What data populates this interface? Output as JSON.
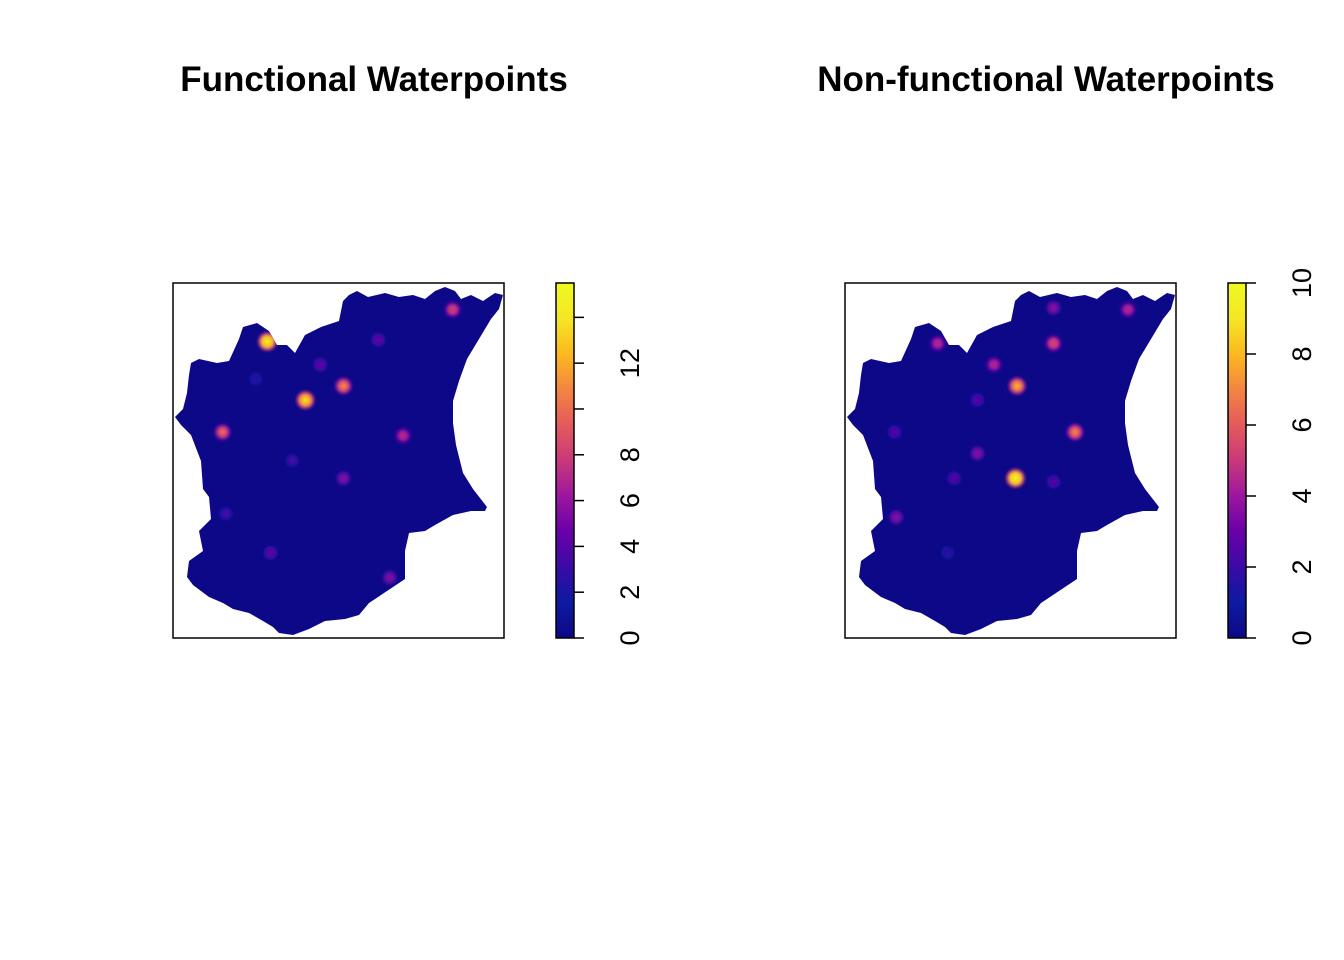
{
  "panels": [
    {
      "title": "Functional Waterpoints",
      "legend": {
        "min": 0,
        "max": 15.5,
        "ticks": [
          0,
          2,
          4,
          6,
          8,
          10,
          12,
          14
        ],
        "labels": [
          "0",
          "2",
          "4",
          "6",
          "8",
          "",
          "12",
          ""
        ]
      },
      "hotspots": [
        {
          "lon": 0.285,
          "lat": 0.835,
          "value": 15
        },
        {
          "lon": 0.4,
          "lat": 0.67,
          "value": 14
        },
        {
          "lon": 0.515,
          "lat": 0.71,
          "value": 11
        },
        {
          "lon": 0.845,
          "lat": 0.925,
          "value": 9
        },
        {
          "lon": 0.695,
          "lat": 0.57,
          "value": 8
        },
        {
          "lon": 0.15,
          "lat": 0.58,
          "value": 10
        },
        {
          "lon": 0.445,
          "lat": 0.77,
          "value": 5
        },
        {
          "lon": 0.62,
          "lat": 0.84,
          "value": 5
        },
        {
          "lon": 0.515,
          "lat": 0.45,
          "value": 6
        },
        {
          "lon": 0.36,
          "lat": 0.5,
          "value": 4
        },
        {
          "lon": 0.16,
          "lat": 0.35,
          "value": 4
        },
        {
          "lon": 0.295,
          "lat": 0.24,
          "value": 5
        },
        {
          "lon": 0.655,
          "lat": 0.17,
          "value": 6
        },
        {
          "lon": 0.25,
          "lat": 0.73,
          "value": 3
        }
      ]
    },
    {
      "title": "Non-functional Waterpoints",
      "legend": {
        "min": 0,
        "max": 10,
        "ticks": [
          0,
          2,
          4,
          6,
          8,
          10
        ],
        "labels": [
          "0",
          "2",
          "4",
          "6",
          "8",
          "10"
        ]
      },
      "hotspots": [
        {
          "lon": 0.515,
          "lat": 0.45,
          "value": 10
        },
        {
          "lon": 0.52,
          "lat": 0.71,
          "value": 8
        },
        {
          "lon": 0.695,
          "lat": 0.58,
          "value": 7
        },
        {
          "lon": 0.63,
          "lat": 0.83,
          "value": 6
        },
        {
          "lon": 0.45,
          "lat": 0.77,
          "value": 5
        },
        {
          "lon": 0.28,
          "lat": 0.83,
          "value": 5
        },
        {
          "lon": 0.855,
          "lat": 0.925,
          "value": 5
        },
        {
          "lon": 0.63,
          "lat": 0.93,
          "value": 4
        },
        {
          "lon": 0.4,
          "lat": 0.52,
          "value": 4
        },
        {
          "lon": 0.15,
          "lat": 0.58,
          "value": 3
        },
        {
          "lon": 0.155,
          "lat": 0.34,
          "value": 4
        },
        {
          "lon": 0.4,
          "lat": 0.67,
          "value": 3
        },
        {
          "lon": 0.63,
          "lat": 0.44,
          "value": 3
        },
        {
          "lon": 0.33,
          "lat": 0.45,
          "value": 3
        },
        {
          "lon": 0.31,
          "lat": 0.24,
          "value": 2
        }
      ]
    }
  ],
  "palette": {
    "low": "#0D0887",
    "mid": "#CC4678",
    "high": "#F0F921",
    "stops": [
      "#0D0887",
      "#0D1AA0",
      "#3A0AA6",
      "#6A00A8",
      "#9C179E",
      "#C8397A",
      "#E45A5D",
      "#F48541",
      "#FBB91F",
      "#F5E626",
      "#F0F921"
    ]
  }
}
